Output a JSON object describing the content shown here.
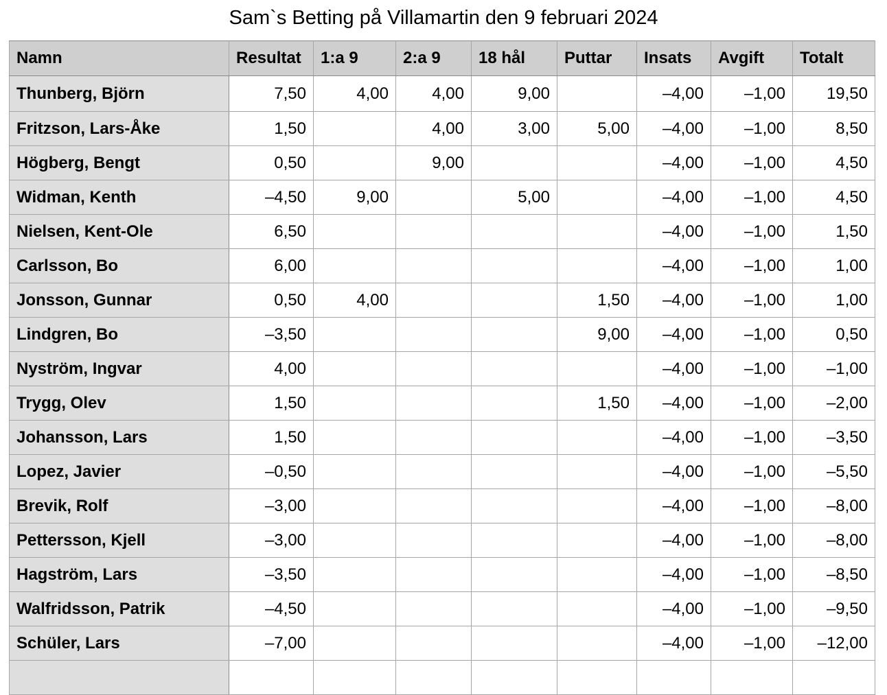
{
  "title": "Sam`s Betting på Villamartin den 9 februari 2024",
  "columns": [
    "Namn",
    "Resultat",
    "1:a 9",
    "2:a 9",
    "18 hål",
    "Puttar",
    "Insats",
    "Avgift",
    "Totalt"
  ],
  "rows": [
    [
      "Thunberg, Björn",
      "7,50",
      "4,00",
      "4,00",
      "9,00",
      "",
      "–4,00",
      "–1,00",
      "19,50"
    ],
    [
      "Fritzson, Lars-Åke",
      "1,50",
      "",
      "4,00",
      "3,00",
      "5,00",
      "–4,00",
      "–1,00",
      "8,50"
    ],
    [
      "Högberg, Bengt",
      "0,50",
      "",
      "9,00",
      "",
      "",
      "–4,00",
      "–1,00",
      "4,50"
    ],
    [
      "Widman, Kenth",
      "–4,50",
      "9,00",
      "",
      "5,00",
      "",
      "–4,00",
      "–1,00",
      "4,50"
    ],
    [
      "Nielsen, Kent-Ole",
      "6,50",
      "",
      "",
      "",
      "",
      "–4,00",
      "–1,00",
      "1,50"
    ],
    [
      "Carlsson, Bo",
      "6,00",
      "",
      "",
      "",
      "",
      "–4,00",
      "–1,00",
      "1,00"
    ],
    [
      "Jonsson, Gunnar",
      "0,50",
      "4,00",
      "",
      "",
      "1,50",
      "–4,00",
      "–1,00",
      "1,00"
    ],
    [
      "Lindgren, Bo",
      "–3,50",
      "",
      "",
      "",
      "9,00",
      "–4,00",
      "–1,00",
      "0,50"
    ],
    [
      "Nyström, Ingvar",
      "4,00",
      "",
      "",
      "",
      "",
      "–4,00",
      "–1,00",
      "–1,00"
    ],
    [
      "Trygg, Olev",
      "1,50",
      "",
      "",
      "",
      "1,50",
      "–4,00",
      "–1,00",
      "–2,00"
    ],
    [
      "Johansson, Lars",
      "1,50",
      "",
      "",
      "",
      "",
      "–4,00",
      "–1,00",
      "–3,50"
    ],
    [
      "Lopez, Javier",
      "–0,50",
      "",
      "",
      "",
      "",
      "–4,00",
      "–1,00",
      "–5,50"
    ],
    [
      "Brevik, Rolf",
      "–3,00",
      "",
      "",
      "",
      "",
      "–4,00",
      "–1,00",
      "–8,00"
    ],
    [
      "Pettersson, Kjell",
      "–3,00",
      "",
      "",
      "",
      "",
      "–4,00",
      "–1,00",
      "–8,00"
    ],
    [
      "Hagström, Lars",
      "–3,50",
      "",
      "",
      "",
      "",
      "–4,00",
      "–1,00",
      "–8,50"
    ],
    [
      "Walfridsson, Patrik",
      "–4,50",
      "",
      "",
      "",
      "",
      "–4,00",
      "–1,00",
      "–9,50"
    ],
    [
      "Schüler, Lars",
      "–7,00",
      "",
      "",
      "",
      "",
      "–4,00",
      "–1,00",
      "–12,00"
    ],
    [
      "",
      "",
      "",
      "",
      "",
      "",
      "",
      "",
      ""
    ]
  ]
}
